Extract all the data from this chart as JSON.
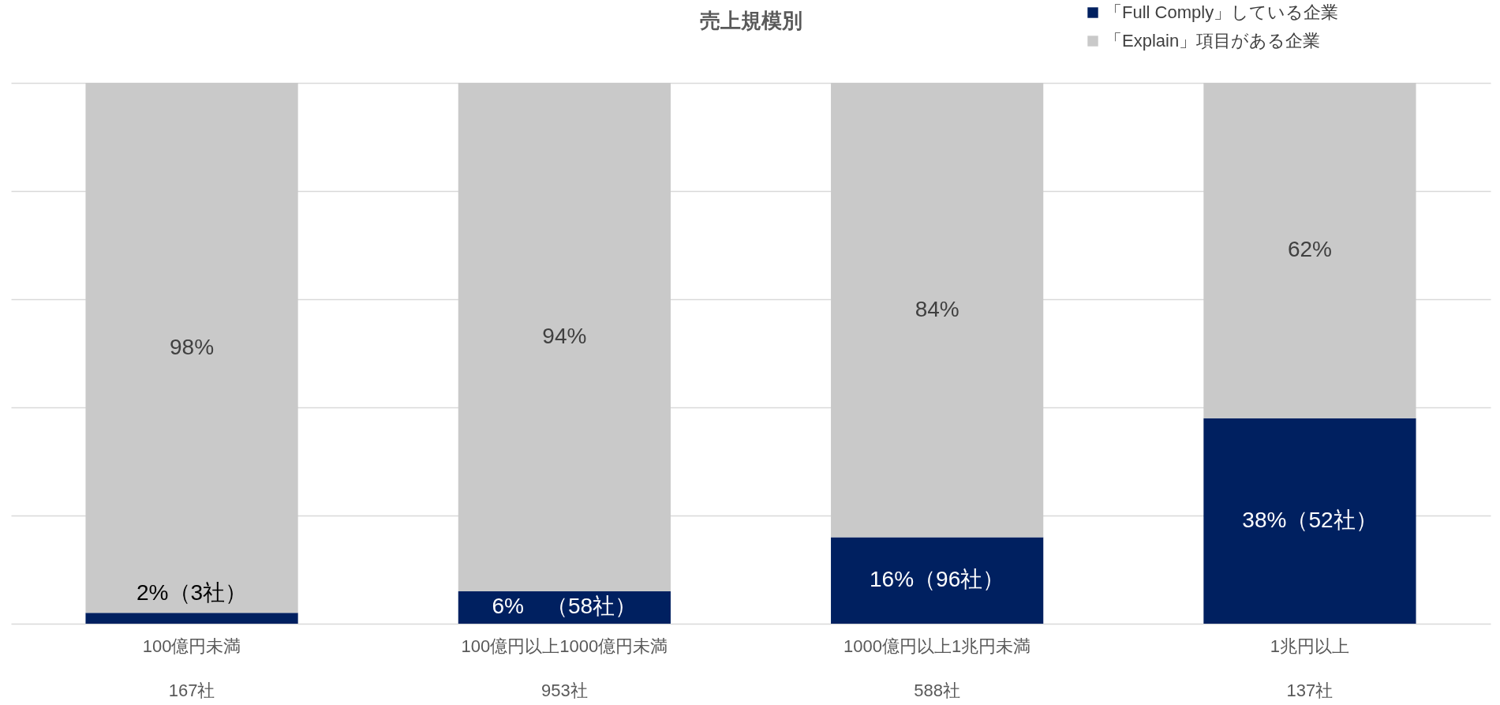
{
  "chart_data": {
    "type": "bar",
    "title": "売上規模別",
    "stacked": true,
    "categories": [
      "100億円未満\n167社",
      "100億円以上1000億円未満\n953社",
      "1000億円以上1兆円未満\n588社",
      "1兆円以上\n137社"
    ],
    "series": [
      {
        "name": "「Full Comply」している企業",
        "color": "#002060",
        "values": [
          2,
          6,
          16,
          38
        ],
        "value_labels": [
          "2%（3社）",
          "6%　（58社）",
          "16%（96社）",
          "38%（52社）"
        ]
      },
      {
        "name": "「Explain」項目がある企業",
        "color": "#c9c9c9",
        "values": [
          98,
          94,
          84,
          62
        ],
        "value_labels": [
          "98%",
          "94%",
          "84%",
          "62%"
        ]
      }
    ],
    "ylim": [
      0,
      100
    ],
    "yticks": [
      {
        "value": 0,
        "label": null
      },
      {
        "value": 20,
        "label": null
      },
      {
        "value": 40,
        "label": null
      },
      {
        "value": 60,
        "label": null
      },
      {
        "value": 80,
        "label": null
      },
      {
        "value": 100,
        "label": null
      }
    ],
    "grid": "y",
    "legend": "top right"
  }
}
